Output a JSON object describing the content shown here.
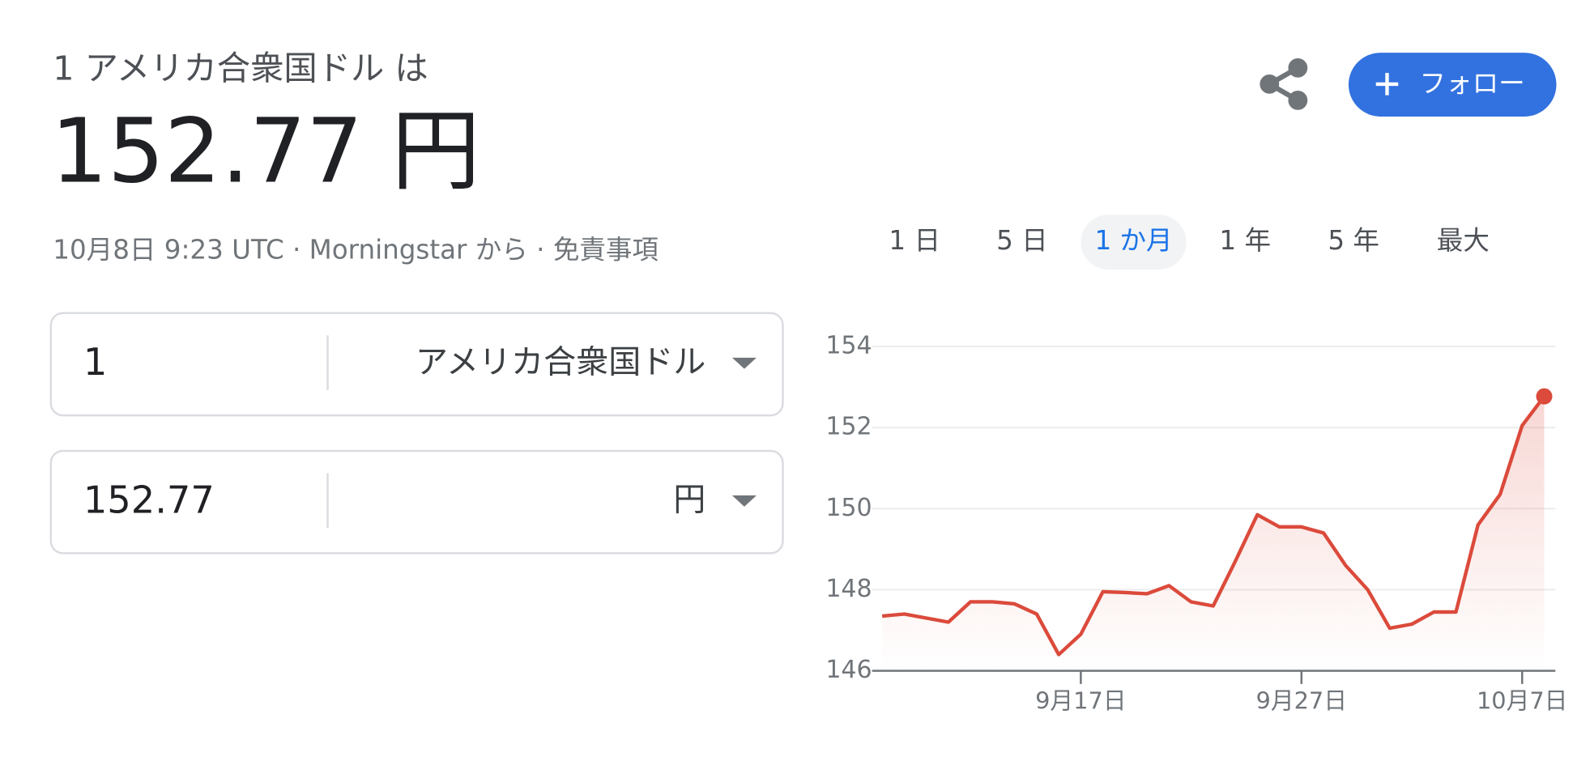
{
  "header": {
    "title": "1 アメリカ合衆国ドル は",
    "rate": "152.77 円",
    "meta": "10月8日 9:23 UTC · Morningstar から · 免責事項"
  },
  "buttons": {
    "follow": "フォロー"
  },
  "converter": {
    "rows": [
      {
        "amount": "1",
        "currency": "アメリカ合衆国ドル"
      },
      {
        "amount": "152.77",
        "currency": "円"
      }
    ]
  },
  "ranges": [
    "1 日",
    "5 日",
    "1 か月",
    "1 年",
    "5 年",
    "最大"
  ],
  "active_range": 2,
  "chart_data": {
    "type": "line",
    "x": [
      "9月8日",
      "9月9日",
      "9月10日",
      "9月11日",
      "9月12日",
      "9月13日",
      "9月14日",
      "9月15日",
      "9月16日",
      "9月17日",
      "9月18日",
      "9月19日",
      "9月20日",
      "9月21日",
      "9月22日",
      "9月23日",
      "9月24日",
      "9月25日",
      "9月26日",
      "9月27日",
      "9月28日",
      "9月29日",
      "9月30日",
      "10月1日",
      "10月2日",
      "10月3日",
      "10月4日",
      "10月5日",
      "10月6日",
      "10月7日",
      "10月8日"
    ],
    "values": [
      147.35,
      147.4,
      147.3,
      147.2,
      147.7,
      147.7,
      147.65,
      147.4,
      146.4,
      146.9,
      147.95,
      147.93,
      147.9,
      148.1,
      147.7,
      147.6,
      148.7,
      149.85,
      149.55,
      149.55,
      149.4,
      148.6,
      148.0,
      147.05,
      147.15,
      147.45,
      147.45,
      149.6,
      150.35,
      152.05,
      152.77
    ],
    "color": "#db4a3b",
    "ylim": [
      146,
      154
    ],
    "yticks": [
      146,
      148,
      150,
      152,
      154
    ],
    "xticks": [
      "9月17日",
      "9月27日",
      "10月7日"
    ],
    "grid": true
  }
}
